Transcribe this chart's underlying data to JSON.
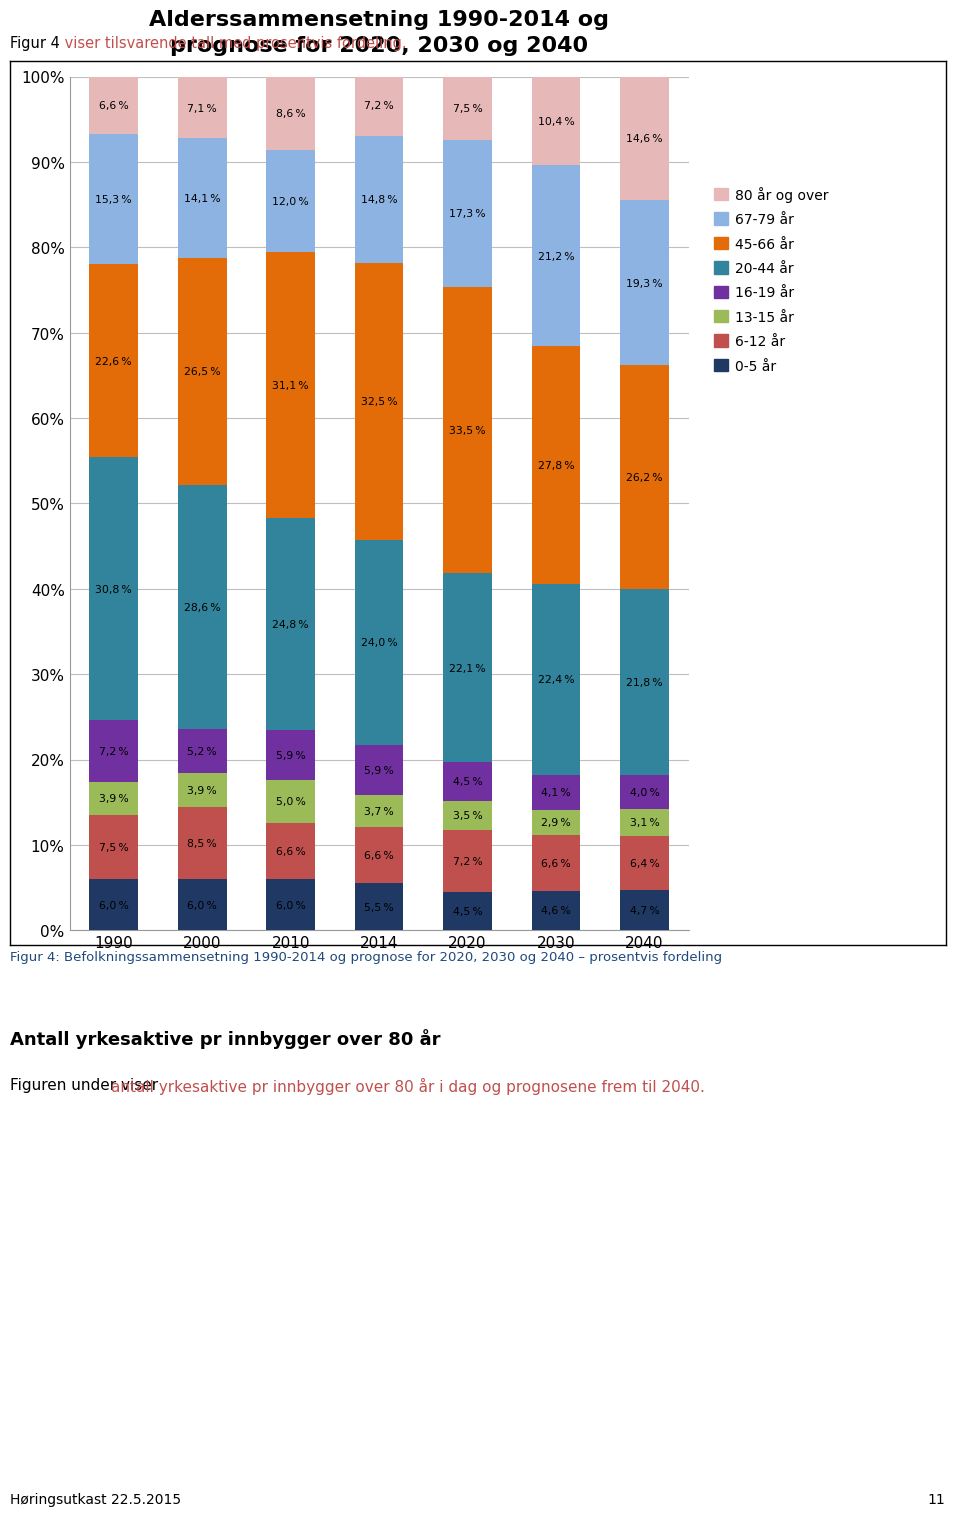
{
  "title": "Alderssammensetning 1990-2014 og\nprognose for 2020, 2030 og 2040",
  "categories": [
    "1990",
    "2000",
    "2010",
    "2014",
    "2020",
    "2030",
    "2040"
  ],
  "series": [
    {
      "label": "0-5 år",
      "color": "#1F3864",
      "values": [
        6.0,
        6.0,
        6.0,
        5.5,
        4.5,
        4.6,
        4.7
      ]
    },
    {
      "label": "6-12 år",
      "color": "#C0504D",
      "values": [
        7.5,
        8.5,
        6.6,
        6.6,
        7.2,
        6.6,
        6.4
      ]
    },
    {
      "label": "13-15 år",
      "color": "#9BBB59",
      "values": [
        3.9,
        3.9,
        5.0,
        3.7,
        3.5,
        2.9,
        3.1
      ]
    },
    {
      "label": "16-19 år",
      "color": "#7030A0",
      "values": [
        7.2,
        5.2,
        5.9,
        5.9,
        4.5,
        4.1,
        4.0
      ]
    },
    {
      "label": "20-44 år",
      "color": "#31849B",
      "values": [
        30.8,
        28.6,
        24.8,
        24.0,
        22.1,
        22.4,
        21.8
      ]
    },
    {
      "label": "45-66 år",
      "color": "#E36C09",
      "values": [
        22.6,
        26.5,
        31.1,
        32.5,
        33.5,
        27.8,
        26.2
      ]
    },
    {
      "label": "67-79 år",
      "color": "#8DB3E2",
      "values": [
        15.3,
        14.1,
        12.0,
        14.8,
        17.3,
        21.2,
        19.3
      ]
    },
    {
      "label": "80 år og over",
      "color": "#E6B8B7",
      "values": [
        6.6,
        7.1,
        8.6,
        7.2,
        7.5,
        10.4,
        14.6
      ]
    }
  ],
  "ylim": [
    0,
    100
  ],
  "yticks": [
    0,
    10,
    20,
    30,
    40,
    50,
    60,
    70,
    80,
    90,
    100
  ],
  "ytick_labels": [
    "0%",
    "10%",
    "20%",
    "30%",
    "40%",
    "50%",
    "60%",
    "70%",
    "80%",
    "90%",
    "100%"
  ],
  "background_color": "#FFFFFF",
  "chart_background": "#FFFFFF",
  "caption": "Figur 4: Befolkningssammensetning 1990-2014 og prognose for 2020, 2030 og 2040 – prosentvis fordeling",
  "section_title": "Antall yrkesaktive pr innbygger over 80 år",
  "section_body_red": "antall yrkesaktive pr innbygger over 80 år i dag og prognosene frem til 2040.",
  "section_body_black": "Figuren under viser ",
  "footer": "Høringsutkast 22.5.2015",
  "footer_page": "11",
  "top_text_black": "Figur 4",
  "top_text_red": " viser tilsvarende tall med prosentvis fordeling."
}
